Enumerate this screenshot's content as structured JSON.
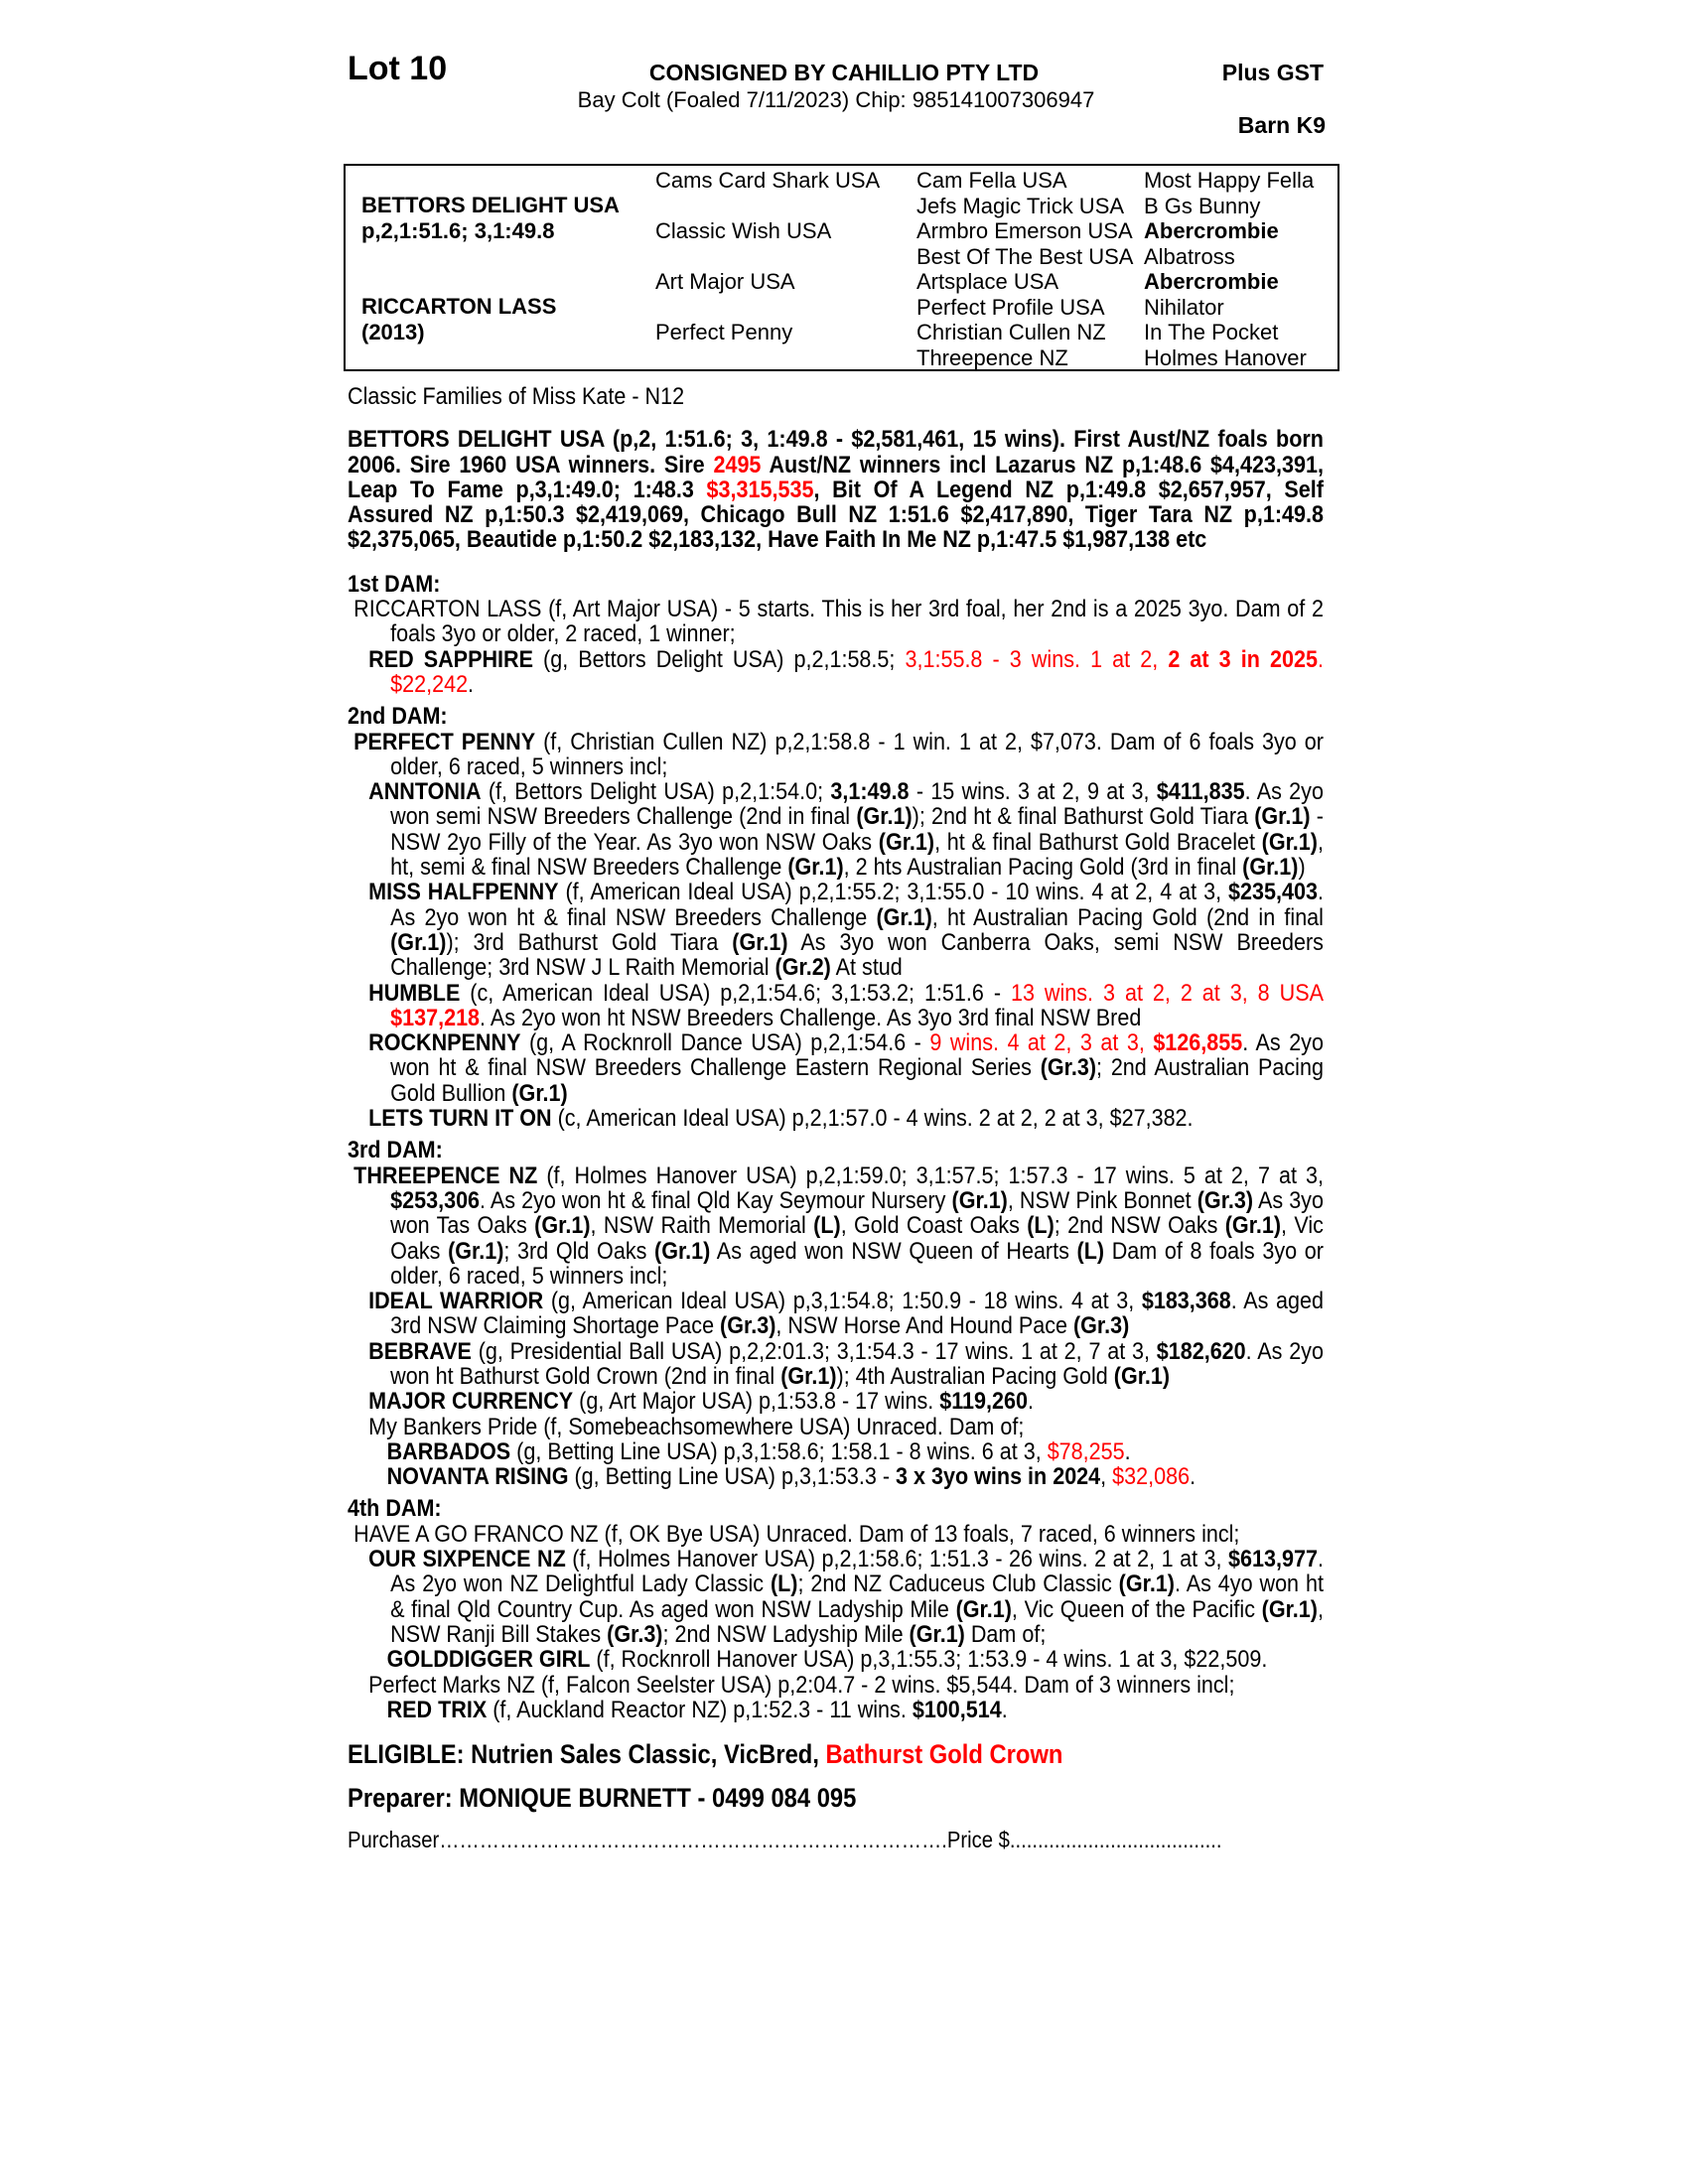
{
  "header": {
    "lot": "Lot 10",
    "consigned": "CONSIGNED BY CAHILLIO PTY LTD",
    "description": "Bay Colt (Foaled 7/11/2023) Chip: 985141007306947",
    "gst": "Plus GST",
    "barn": "Barn K9"
  },
  "pedigree": {
    "sire": {
      "name": "BETTORS DELIGHT USA",
      "record": "p,2,1:51.6; 3,1:49.8"
    },
    "dam": {
      "name": "RICCARTON LASS",
      "year": "(2013)"
    },
    "gen2": [
      "Cams Card Shark USA",
      "Classic Wish USA",
      "Art Major USA",
      "Perfect Penny"
    ],
    "gen3": [
      "Cam Fella USA",
      "Jefs Magic Trick USA",
      "Armbro Emerson USA",
      "Best Of The Best USA",
      "Artsplace USA",
      "Perfect Profile USA",
      "Christian Cullen NZ",
      "Threepence NZ"
    ],
    "gen4": [
      {
        "t": "Most Happy Fella",
        "b": false
      },
      {
        "t": "B Gs Bunny",
        "b": false
      },
      {
        "t": "Abercrombie",
        "b": true
      },
      {
        "t": "Albatross",
        "b": false
      },
      {
        "t": "Abercrombie",
        "b": true
      },
      {
        "t": "Nihilator",
        "b": false
      },
      {
        "t": "In The Pocket",
        "b": false
      },
      {
        "t": "Holmes Hanover",
        "b": false
      }
    ]
  },
  "family": "Classic Families of Miss Kate - N12",
  "sire_para": [
    {
      "t": "BETTORS DELIGHT USA (p,2, 1:51.6; 3, 1:49.8 - $2,581,461, 15 wins). First Aust/NZ foals born 2006. Sire 1960 USA winners. Sire "
    },
    {
      "t": "2495",
      "s": "r"
    },
    {
      "t": " Aust/NZ winners incl Lazarus NZ p,1:48.6 $4,423,391, Leap To Fame p,3,1:49.0; 1:48.3 "
    },
    {
      "t": "$3,315,535",
      "s": "r"
    },
    {
      "t": ", Bit Of A Legend NZ p,1:49.8 $2,657,957, Self Assured NZ p,1:50.3 $2,419,069, Chicago Bull NZ 1:51.6 $2,417,890,  Tiger Tara NZ p,1:49.8 $2,375,065, Beautide p,1:50.2 $2,183,132, Have Faith In Me NZ p,1:47.5 $1,987,138 etc"
    }
  ],
  "sections": [
    {
      "heading": "1st DAM:",
      "entries": [
        {
          "level": "dam",
          "segs": [
            {
              "t": "RICCARTON LASS (f, Art Major USA) - 5 starts. This is her 3rd foal, her 2nd is a 2025 3yo. Dam of 2 foals 3yo or older, 2 raced, 1 winner;"
            }
          ]
        },
        {
          "level": "prog",
          "segs": [
            {
              "t": "RED SAPPHIRE",
              "s": "b"
            },
            {
              "t": " (g, Bettors Delight USA) p,2,1:58.5; "
            },
            {
              "t": "3,1:55.8 - 3 wins. 1 at 2, ",
              "s": "r"
            },
            {
              "t": "2 at 3 in 2025",
              "s": "rb"
            },
            {
              "t": ". $22,242",
              "s": "r"
            },
            {
              "t": "."
            }
          ]
        }
      ]
    },
    {
      "heading": "2nd DAM:",
      "entries": [
        {
          "level": "dam",
          "segs": [
            {
              "t": "PERFECT PENNY",
              "s": "b"
            },
            {
              "t": " (f, Christian Cullen NZ) p,2,1:58.8 - 1 win. 1 at 2, $7,073. Dam of 6 foals 3yo or older, 6 raced, 5 winners incl;"
            }
          ]
        },
        {
          "level": "prog",
          "segs": [
            {
              "t": "ANNTONIA",
              "s": "b"
            },
            {
              "t": " (f, Bettors Delight USA) p,2,1:54.0; "
            },
            {
              "t": "3,1:49.8",
              "s": "b"
            },
            {
              "t": " - 15 wins. 3 at 2, 9 at 3, "
            },
            {
              "t": "$411,835",
              "s": "b"
            },
            {
              "t": ". As 2yo won semi NSW Breeders Challenge (2nd in final "
            },
            {
              "t": "(Gr.1)",
              "s": "b"
            },
            {
              "t": "); 2nd ht & final Bathurst Gold Tiara "
            },
            {
              "t": "(Gr.1)",
              "s": "b"
            },
            {
              "t": " - NSW 2yo Filly of the Year. As 3yo won NSW Oaks "
            },
            {
              "t": "(Gr.1)",
              "s": "b"
            },
            {
              "t": ", ht & final Bathurst Gold Bracelet "
            },
            {
              "t": "(Gr.1)",
              "s": "b"
            },
            {
              "t": ", ht, semi & final NSW Breeders Challenge "
            },
            {
              "t": "(Gr.1)",
              "s": "b"
            },
            {
              "t": ", 2 hts Australian Pacing Gold (3rd in final "
            },
            {
              "t": "(Gr.1)",
              "s": "b"
            },
            {
              "t": ")"
            }
          ]
        },
        {
          "level": "prog",
          "segs": [
            {
              "t": "MISS HALFPENNY",
              "s": "b"
            },
            {
              "t": " (f, American Ideal USA) p,2,1:55.2; 3,1:55.0 - 10 wins. 4 at 2, 4 at 3, "
            },
            {
              "t": "$235,403",
              "s": "b"
            },
            {
              "t": ". As 2yo won ht & final NSW Breeders Challenge "
            },
            {
              "t": "(Gr.1)",
              "s": "b"
            },
            {
              "t": ", ht Australian Pacing Gold (2nd in final "
            },
            {
              "t": "(Gr.1)",
              "s": "b"
            },
            {
              "t": "); 3rd Bathurst Gold Tiara "
            },
            {
              "t": "(Gr.1)",
              "s": "b"
            },
            {
              "t": " As 3yo won Canberra Oaks, semi NSW Breeders Challenge; 3rd NSW J L Raith Memorial "
            },
            {
              "t": "(Gr.2)",
              "s": "b"
            },
            {
              "t": " At stud"
            }
          ]
        },
        {
          "level": "prog",
          "segs": [
            {
              "t": "HUMBLE",
              "s": "b"
            },
            {
              "t": " (c, American Ideal USA) p,2,1:54.6; 3,1:53.2; 1:51.6 - "
            },
            {
              "t": "13 wins. 3 at 2, 2 at 3, 8 USA ",
              "s": "r"
            },
            {
              "t": "$137,218",
              "s": "rb"
            },
            {
              "t": ". As 2yo won ht NSW Breeders Challenge. As 3yo 3rd final NSW Bred"
            }
          ]
        },
        {
          "level": "prog",
          "segs": [
            {
              "t": "ROCKNPENNY",
              "s": "b"
            },
            {
              "t": " (g, A Rocknroll Dance USA) p,2,1:54.6 - "
            },
            {
              "t": "9 wins. 4 at 2, 3 at 3, ",
              "s": "r"
            },
            {
              "t": "$126,855",
              "s": "rb"
            },
            {
              "t": ". As 2yo won ht & final NSW Breeders Challenge Eastern Regional Series "
            },
            {
              "t": "(Gr.3)",
              "s": "b"
            },
            {
              "t": "; 2nd Australian Pacing Gold Bullion "
            },
            {
              "t": "(Gr.1)",
              "s": "b"
            }
          ]
        },
        {
          "level": "prog",
          "segs": [
            {
              "t": "LETS TURN IT ON",
              "s": "b"
            },
            {
              "t": " (c, American Ideal USA) p,2,1:57.0 - 4 wins. 2 at 2, 2 at 3, $27,382."
            }
          ]
        }
      ]
    },
    {
      "heading": "3rd DAM:",
      "entries": [
        {
          "level": "dam",
          "segs": [
            {
              "t": "THREEPENCE NZ",
              "s": "b"
            },
            {
              "t": " (f, Holmes Hanover USA) p,2,1:59.0; 3,1:57.5; 1:57.3 - 17 wins. 5 at 2, 7 at 3, "
            },
            {
              "t": "$253,306",
              "s": "b"
            },
            {
              "t": ". As 2yo won ht & final Qld Kay Seymour Nursery "
            },
            {
              "t": "(Gr.1)",
              "s": "b"
            },
            {
              "t": ", NSW Pink Bonnet "
            },
            {
              "t": "(Gr.3)",
              "s": "b"
            },
            {
              "t": " As 3yo won Tas Oaks "
            },
            {
              "t": "(Gr.1)",
              "s": "b"
            },
            {
              "t": ", NSW Raith Memorial "
            },
            {
              "t": "(L)",
              "s": "b"
            },
            {
              "t": ", Gold Coast Oaks "
            },
            {
              "t": "(L)",
              "s": "b"
            },
            {
              "t": "; 2nd NSW Oaks "
            },
            {
              "t": "(Gr.1)",
              "s": "b"
            },
            {
              "t": ", Vic Oaks "
            },
            {
              "t": "(Gr.1)",
              "s": "b"
            },
            {
              "t": "; 3rd Qld Oaks "
            },
            {
              "t": "(Gr.1)",
              "s": "b"
            },
            {
              "t": " As aged won NSW Queen of Hearts "
            },
            {
              "t": "(L)",
              "s": "b"
            },
            {
              "t": " Dam of 8 foals 3yo or older, 6 raced, 5 winners incl;"
            }
          ]
        },
        {
          "level": "prog",
          "segs": [
            {
              "t": "IDEAL WARRIOR",
              "s": "b"
            },
            {
              "t": " (g, American Ideal USA) p,3,1:54.8; 1:50.9 - 18 wins. 4 at 3, "
            },
            {
              "t": "$183,368",
              "s": "b"
            },
            {
              "t": ". As aged 3rd NSW Claiming Shortage Pace "
            },
            {
              "t": "(Gr.3)",
              "s": "b"
            },
            {
              "t": ", NSW Horse And Hound Pace "
            },
            {
              "t": "(Gr.3)",
              "s": "b"
            }
          ]
        },
        {
          "level": "prog",
          "segs": [
            {
              "t": "BEBRAVE",
              "s": "b"
            },
            {
              "t": " (g, Presidential Ball USA) p,2,2:01.3; 3,1:54.3 - 17 wins. 1 at 2, 7 at 3, "
            },
            {
              "t": "$182,620",
              "s": "b"
            },
            {
              "t": ". As 2yo won ht Bathurst Gold Crown (2nd in final "
            },
            {
              "t": "(Gr.1)",
              "s": "b"
            },
            {
              "t": "); 4th Australian Pacing Gold "
            },
            {
              "t": "(Gr.1)",
              "s": "b"
            }
          ]
        },
        {
          "level": "prog",
          "segs": [
            {
              "t": "MAJOR CURRENCY",
              "s": "b"
            },
            {
              "t": " (g, Art Major USA) p,1:53.8 - 17 wins. "
            },
            {
              "t": "$119,260",
              "s": "b"
            },
            {
              "t": "."
            }
          ]
        },
        {
          "level": "prog",
          "segs": [
            {
              "t": "My Bankers Pride (f, Somebeachsomewhere USA) Unraced. Dam of;"
            }
          ]
        },
        {
          "level": "grand",
          "segs": [
            {
              "t": "BARBADOS",
              "s": "b"
            },
            {
              "t": " (g, Betting Line USA) p,3,1:58.6; 1:58.1 - 8 wins. 6 at 3, "
            },
            {
              "t": "$78,255",
              "s": "r"
            },
            {
              "t": "."
            }
          ]
        },
        {
          "level": "grand",
          "segs": [
            {
              "t": "NOVANTA RISING",
              "s": "b"
            },
            {
              "t": " (g, Betting Line USA) p,3,1:53.3 - "
            },
            {
              "t": "3 x 3yo wins in 2024",
              "s": "b"
            },
            {
              "t": ", "
            },
            {
              "t": "$32,086",
              "s": "r"
            },
            {
              "t": "."
            }
          ]
        }
      ]
    },
    {
      "heading": "4th DAM:",
      "entries": [
        {
          "level": "dam",
          "segs": [
            {
              "t": "HAVE A GO FRANCO NZ (f, OK Bye USA) Unraced. Dam of 13 foals, 7 raced, 6 winners incl;"
            }
          ]
        },
        {
          "level": "prog",
          "segs": [
            {
              "t": "OUR SIXPENCE NZ",
              "s": "b"
            },
            {
              "t": " (f, Holmes Hanover USA) p,2,1:58.6; 1:51.3 - 26 wins. 2 at 2, 1 at 3, "
            },
            {
              "t": "$613,977",
              "s": "b"
            },
            {
              "t": ". As 2yo won NZ Delightful Lady Classic "
            },
            {
              "t": "(L)",
              "s": "b"
            },
            {
              "t": "; 2nd NZ Caduceus Club Classic "
            },
            {
              "t": "(Gr.1)",
              "s": "b"
            },
            {
              "t": ". As 4yo won ht & final Qld Country Cup. As aged won NSW Ladyship Mile "
            },
            {
              "t": "(Gr.1)",
              "s": "b"
            },
            {
              "t": ", Vic Queen of the Pacific "
            },
            {
              "t": "(Gr.1)",
              "s": "b"
            },
            {
              "t": ", NSW Ranji Bill Stakes "
            },
            {
              "t": "(Gr.3)",
              "s": "b"
            },
            {
              "t": "; 2nd NSW Ladyship Mile "
            },
            {
              "t": "(Gr.1)",
              "s": "b"
            },
            {
              "t": " Dam of;"
            }
          ]
        },
        {
          "level": "grand",
          "segs": [
            {
              "t": "GOLDDIGGER GIRL",
              "s": "b"
            },
            {
              "t": " (f, Rocknroll Hanover USA) p,3,1:55.3; 1:53.9 - 4 wins. 1 at 3, $22,509."
            }
          ]
        },
        {
          "level": "prog",
          "segs": [
            {
              "t": "Perfect Marks NZ (f, Falcon Seelster USA) p,2:04.7 - 2 wins. $5,544. Dam of 3 winners incl;"
            }
          ]
        },
        {
          "level": "grand",
          "segs": [
            {
              "t": "RED TRIX",
              "s": "b"
            },
            {
              "t": " (f, Auckland Reactor NZ) p,1:52.3 - 11 wins. "
            },
            {
              "t": "$100,514",
              "s": "b"
            },
            {
              "t": "."
            }
          ]
        }
      ]
    }
  ],
  "eligible": {
    "label": "ELIGIBLE: Nutrien Sales Classic, VicBred, ",
    "highlight": "Bathurst Gold Crown"
  },
  "preparer": "Preparer: MONIQUE BURNETT - 0499 084 095",
  "purchase": {
    "purchaser": "Purchaser………………………………………………………………….",
    "price": "Price $......................................"
  },
  "colors": {
    "highlight": "#ff0000",
    "text": "#000000"
  }
}
